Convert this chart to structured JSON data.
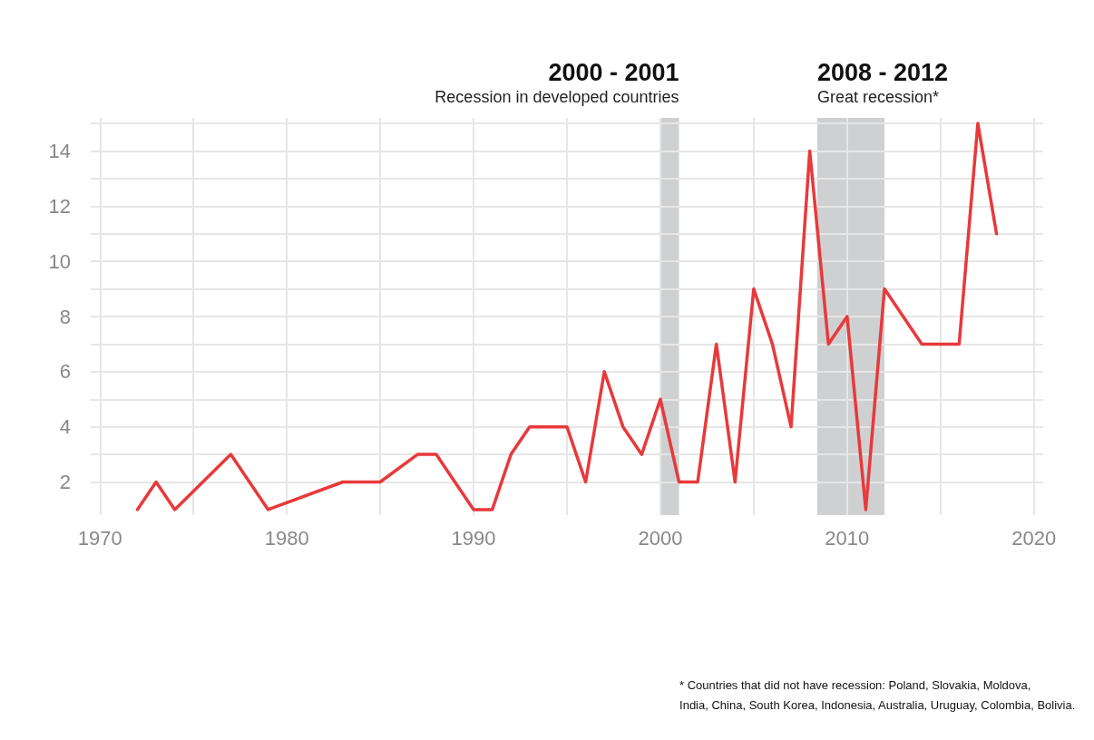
{
  "chart_data": {
    "type": "line",
    "x": [
      1972,
      1973,
      1974,
      1977,
      1979,
      1983,
      1985,
      1987,
      1988,
      1990,
      1991,
      1992,
      1993,
      1995,
      1996,
      1997,
      1998,
      1999,
      2000,
      2001,
      2002,
      2003,
      2004,
      2005,
      2006,
      2007,
      2008,
      2009,
      2010,
      2011,
      2012,
      2014,
      2016,
      2017,
      2018
    ],
    "series": [
      {
        "color": "#e8393b",
        "values": [
          1,
          2,
          1,
          3,
          1,
          2,
          2,
          3,
          3,
          1,
          1,
          3,
          4,
          4,
          2,
          6,
          4,
          3,
          5,
          2,
          2,
          7,
          2,
          9,
          7,
          4,
          14,
          7,
          8,
          1,
          9,
          7,
          7,
          15,
          11
        ]
      }
    ],
    "xlim": [
      1969.5,
      2020.5
    ],
    "xticks": [
      1970,
      1980,
      1990,
      2000,
      2010,
      2020
    ],
    "ylim": [
      0.8,
      15.2
    ],
    "yticks": [
      2,
      4,
      6,
      8,
      10,
      12,
      14
    ],
    "grid": true,
    "marker": "none",
    "line_style": "solid",
    "bands": [
      {
        "axis": "x",
        "from": 2000,
        "to": 2001,
        "label": "2000 - 2001\nRecession in developed countries",
        "color": "#cfd0d1"
      },
      {
        "axis": "x",
        "from": 2008.4,
        "to": 2012,
        "label": "2008 - 2012\nGreat recession*",
        "color": "#cfd0d1"
      }
    ],
    "annotations": [
      "* Countries that did not have recession: Poland, Slovakia, Moldova,\nIndia, China, South Korea, Indonesia, Australia, Uruguay, Colombia, Bolivia."
    ]
  }
}
